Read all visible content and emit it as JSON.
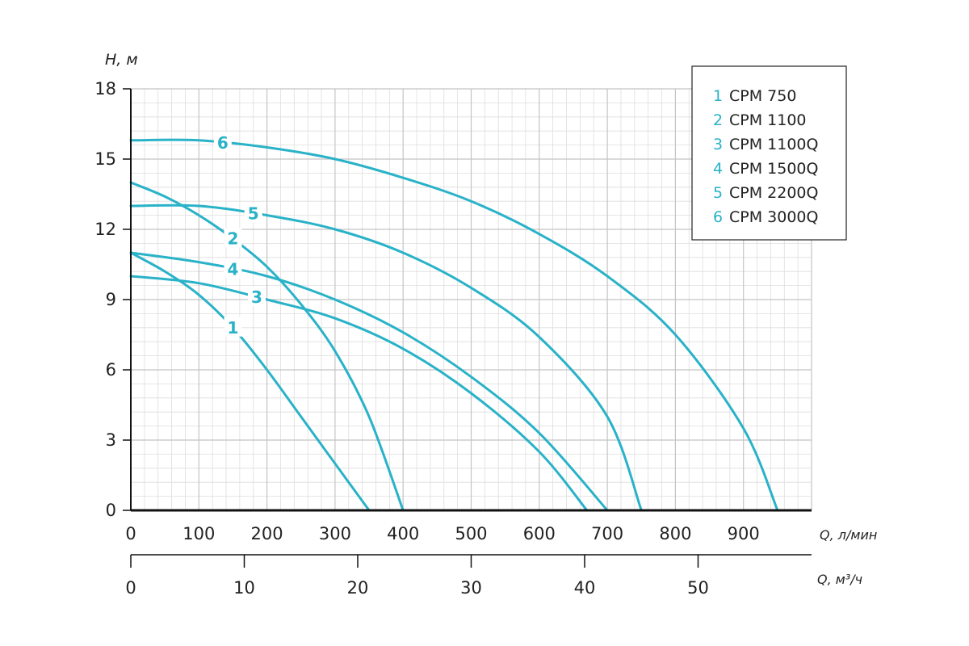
{
  "chart_data": {
    "type": "line",
    "ylabel": "H, м",
    "xlabel": "Q, л/мин",
    "x2label": "Q, м³/ч",
    "ylim": [
      0,
      18
    ],
    "yticks": [
      0,
      3,
      6,
      9,
      12,
      15,
      18
    ],
    "xlim": [
      0,
      1000
    ],
    "xticks": [
      0,
      100,
      200,
      300,
      400,
      500,
      600,
      700,
      800,
      900
    ],
    "x2lim": [
      0,
      60
    ],
    "x2ticks": [
      0,
      10,
      20,
      30,
      40,
      50
    ],
    "grid": true,
    "legend_position": "top-right",
    "series_color": "#29b2c8",
    "series": [
      {
        "name": "CPM 750",
        "number": "1",
        "x": [
          0,
          50,
          100,
          150,
          200,
          250,
          300,
          350
        ],
        "y": [
          11,
          10.2,
          9.2,
          7.8,
          6.0,
          4.0,
          2.0,
          0
        ]
      },
      {
        "name": "CPM 1100",
        "number": "2",
        "x": [
          0,
          50,
          100,
          150,
          200,
          250,
          300,
          350,
          400
        ],
        "y": [
          14,
          13.4,
          12.6,
          11.6,
          10.4,
          8.8,
          6.8,
          4.0,
          0
        ]
      },
      {
        "name": "CPM 1100Q",
        "number": "3",
        "x": [
          0,
          100,
          200,
          300,
          400,
          500,
          600,
          670
        ],
        "y": [
          10,
          9.7,
          9.0,
          8.2,
          6.9,
          5.0,
          2.5,
          0
        ]
      },
      {
        "name": "CPM 1500Q",
        "number": "4",
        "x": [
          0,
          100,
          200,
          300,
          400,
          500,
          600,
          700
        ],
        "y": [
          11,
          10.6,
          10.0,
          9.0,
          7.6,
          5.7,
          3.3,
          0
        ]
      },
      {
        "name": "CPM 2200Q",
        "number": "5",
        "x": [
          0,
          100,
          200,
          300,
          400,
          500,
          600,
          700,
          750
        ],
        "y": [
          13,
          13.0,
          12.6,
          12.0,
          11.0,
          9.5,
          7.4,
          4.0,
          0
        ]
      },
      {
        "name": "CPM 3000Q",
        "number": "6",
        "x": [
          0,
          100,
          200,
          300,
          400,
          500,
          600,
          700,
          800,
          900,
          950
        ],
        "y": [
          15.8,
          15.8,
          15.5,
          15.0,
          14.2,
          13.2,
          11.8,
          10.0,
          7.5,
          3.5,
          0
        ]
      }
    ]
  }
}
